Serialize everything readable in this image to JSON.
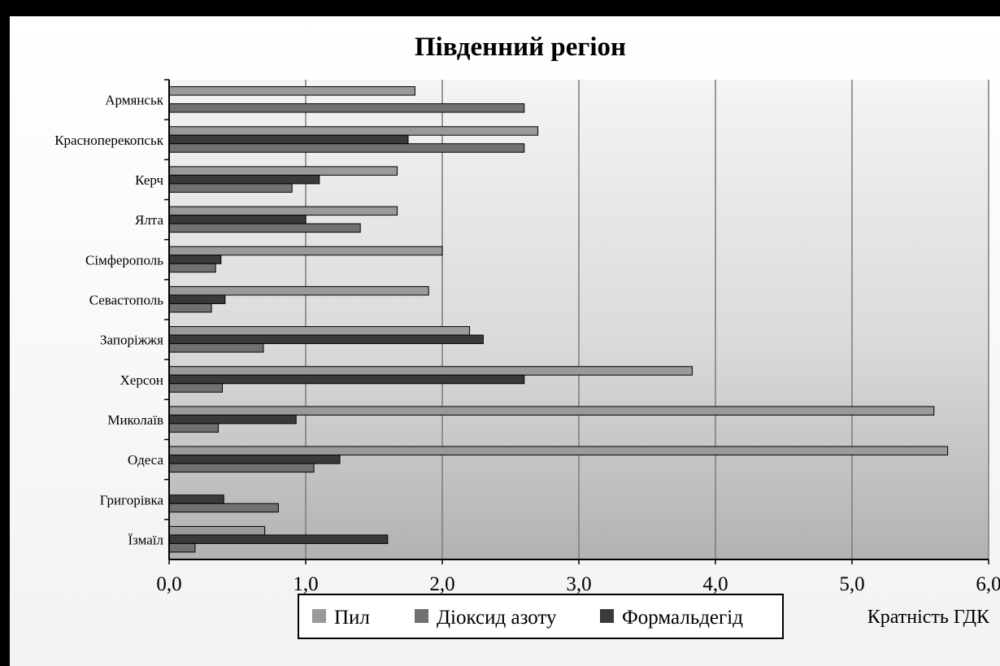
{
  "chart_data": {
    "type": "bar",
    "orientation": "horizontal",
    "title": "Південний регіон",
    "xlabel": "Кратність ГДК",
    "xlim": [
      0,
      6
    ],
    "x_ticks": [
      "0,0",
      "1,0",
      "2,0",
      "3,0",
      "4,0",
      "5,0",
      "6,0"
    ],
    "grid": true,
    "legend_position": "bottom",
    "categories": [
      "Армянськ",
      "Красноперекопськ",
      "Керч",
      "Ялта",
      "Сімферополь",
      "Севастополь",
      "Запоріжжя",
      "Херсон",
      "Миколаїв",
      "Одеса",
      "Григорівка",
      "Їзмаїл"
    ],
    "series": [
      {
        "name": "Пил",
        "color": "#9a9a9a",
        "values": [
          1.8,
          2.7,
          1.67,
          1.67,
          2.0,
          1.9,
          2.2,
          3.83,
          5.6,
          5.7,
          null,
          0.7
        ]
      },
      {
        "name": "Формальдегід",
        "color": "#3a3a3a",
        "values": [
          null,
          1.75,
          1.1,
          1.0,
          0.38,
          0.41,
          2.3,
          2.6,
          0.93,
          1.25,
          0.4,
          1.6
        ]
      },
      {
        "name": "Діоксид азоту",
        "color": "#717171",
        "values": [
          2.6,
          2.6,
          0.9,
          1.4,
          0.34,
          0.31,
          0.69,
          0.39,
          0.36,
          1.06,
          0.8,
          0.19
        ]
      }
    ],
    "legend_order": [
      0,
      2,
      1
    ]
  }
}
